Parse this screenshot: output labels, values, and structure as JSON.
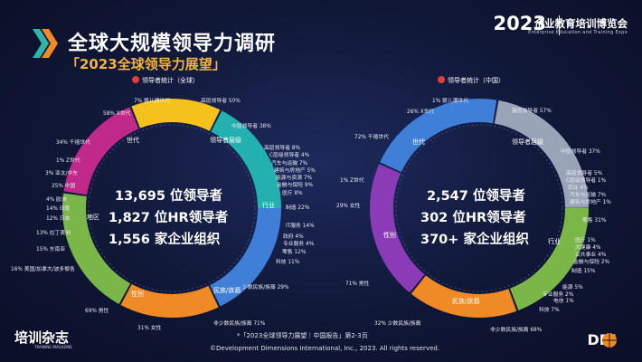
{
  "header": {
    "title": "全球大规模领导力调研",
    "subtitle": "「2023全球领导力展望」",
    "brand_year": "2023",
    "brand_name": "企业教育培训博览会",
    "brand_sub": "Enterprise Education and Training Expo"
  },
  "left": {
    "legend": "领导者统计（全球）",
    "stats": [
      "13,695 位领导者",
      "1,827 位HR领导者",
      "1,556 家企业组织"
    ],
    "arc_labels": [
      "世代",
      "领导者层级",
      "行业",
      "民族/族裔",
      "性别",
      "地区"
    ],
    "labels": [
      "7%  婴儿潮世代",
      "58% X世代",
      "34% 千禧世代",
      "1% Z世代",
      "3% 亚太/中东",
      "25% 中国",
      "4% 欧洲",
      "14% 印度",
      "12% 日本",
      "13% 拉丁美洲",
      "15% 东南亚",
      "16% 美国/加拿大/波多黎各",
      "69% 男性",
      "31% 女性",
      "高层领导者 50%",
      "中层领导者 38%",
      "高层领导者 8%",
      "C层级领导者 4%",
      "汽车与运输 7%",
      "建筑与房地产 5%",
      "能源与资源 7%",
      "金融与保险 9%",
      "医疗 8%",
      "制造 22%",
      "IT服务 14%",
      "政府 4%",
      "专业服务 4%",
      "零售 12%",
      "科技 11%",
      "少数民族/族裔 29%",
      "非少数民族/族裔 71%"
    ]
  },
  "right": {
    "legend": "领导者统计（中国）",
    "stats": [
      "2,547 位领导者",
      "302 位HR领导者",
      "370+ 家企业组织"
    ],
    "arc_labels": [
      "世代",
      "领导者层级",
      "行业",
      "民族/族裔",
      "性别"
    ],
    "labels": [
      "1%  婴儿潮世代",
      "26% X世代",
      "72% 千禧世代",
      "1% Z世代",
      "29% 女性",
      "71% 男性",
      "基层领导者 57%",
      "中层领导者 37%",
      "高层领导者 5%",
      "C层级领导者 1%",
      "农业 4%",
      "汽车与运输 7%",
      "建筑与房地产 1%",
      "零售 31%",
      "医疗 1%",
      "大健康 4%",
      "公共事业 4%",
      "金融与保险 2%",
      "制造 15%",
      "能源 5%",
      "电信 1%",
      "专业服务 2%",
      "科技 7%",
      "非少数民族/族裔 68%",
      "32% 少数民族/族裔"
    ]
  },
  "footer": {
    "note": "*「2023全球领导力展望｜中国报告」第2-3页",
    "copyright": "©Development Dimensions International, Inc., 2023. All rights reserved.",
    "logo_left": "培训杂志",
    "logo_left_sub": "TRAINING MAGAZINE",
    "logo_right": "DDI"
  },
  "colors": {
    "accent": "#f4b33a",
    "blue": "#3f7fd8",
    "orange": "#f08a24",
    "green": "#7ab648",
    "magenta": "#c0288a",
    "teal": "#23b1b0",
    "yellow": "#f4c21a",
    "purple": "#8a3bb5"
  }
}
